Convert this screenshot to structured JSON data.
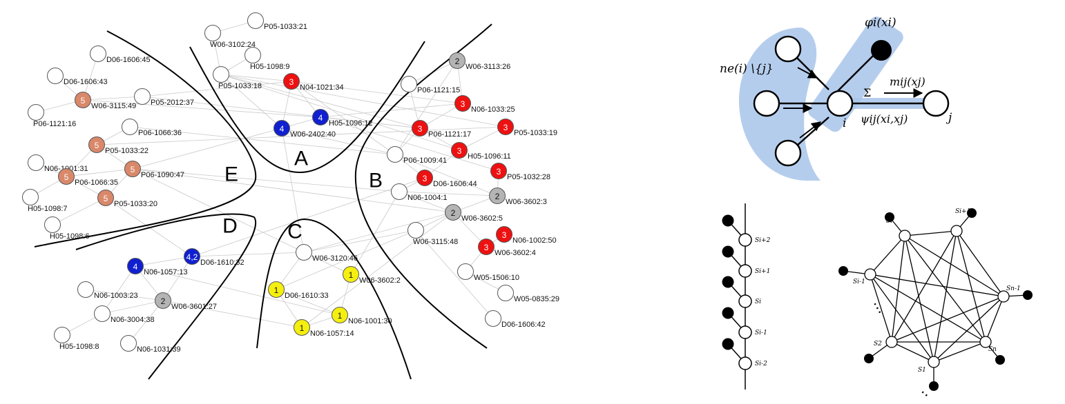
{
  "graph": {
    "regions": [
      "A",
      "B",
      "C",
      "D",
      "E"
    ],
    "colors": {
      "white": "#ffffff",
      "red": "#ee1111",
      "blue": "#1020d0",
      "gray": "#b4b4b4",
      "salmon": "#d9886a",
      "yellow": "#f5ef10"
    },
    "nodes": [
      {
        "id": "P05-1033:21",
        "color": "white",
        "num": ""
      },
      {
        "id": "W06-3102:24",
        "color": "white",
        "num": ""
      },
      {
        "id": "H05-1098:9",
        "color": "white",
        "num": ""
      },
      {
        "id": "P05-1033:18",
        "color": "white",
        "num": ""
      },
      {
        "id": "N04-1021:34",
        "color": "red",
        "num": "3"
      },
      {
        "id": "H05-1096:12",
        "color": "blue",
        "num": "4"
      },
      {
        "id": "W06-2402:40",
        "color": "blue",
        "num": "4"
      },
      {
        "id": "W06-3113:26",
        "color": "gray",
        "num": "2"
      },
      {
        "id": "P06-1121:15",
        "color": "white",
        "num": ""
      },
      {
        "id": "N06-1033:25",
        "color": "red",
        "num": "3"
      },
      {
        "id": "P06-1121:17",
        "color": "red",
        "num": "3"
      },
      {
        "id": "P05-1033:19",
        "color": "red",
        "num": "3"
      },
      {
        "id": "H05-1096:11",
        "color": "red",
        "num": "3"
      },
      {
        "id": "P06-1009:41",
        "color": "white",
        "num": ""
      },
      {
        "id": "P05-1032:28",
        "color": "red",
        "num": "3"
      },
      {
        "id": "D06-1606:44",
        "color": "red",
        "num": "3"
      },
      {
        "id": "N06-1004:1",
        "color": "white",
        "num": ""
      },
      {
        "id": "W06-3602:3",
        "color": "gray",
        "num": "2"
      },
      {
        "id": "W06-3602:5",
        "color": "gray",
        "num": "2"
      },
      {
        "id": "W06-3115:48",
        "color": "white",
        "num": ""
      },
      {
        "id": "N06-1002:50",
        "color": "red",
        "num": "3"
      },
      {
        "id": "W06-3602:4",
        "color": "red",
        "num": "3"
      },
      {
        "id": "W05-1506:10",
        "color": "white",
        "num": ""
      },
      {
        "id": "W05-0835:29",
        "color": "white",
        "num": ""
      },
      {
        "id": "D06-1606:42",
        "color": "white",
        "num": ""
      },
      {
        "id": "W06-3120:46",
        "color": "white",
        "num": ""
      },
      {
        "id": "W06-3602:2",
        "color": "yellow",
        "num": "1"
      },
      {
        "id": "D06-1610:33",
        "color": "yellow",
        "num": "1"
      },
      {
        "id": "N06-1001:30",
        "color": "yellow",
        "num": "1"
      },
      {
        "id": "N06-1057:14",
        "color": "yellow",
        "num": "1"
      },
      {
        "id": "D06-1610:32",
        "color": "blue",
        "num": "4,2"
      },
      {
        "id": "N06-1057:13",
        "color": "blue",
        "num": "4"
      },
      {
        "id": "N06-1003:23",
        "color": "white",
        "num": ""
      },
      {
        "id": "W06-3601:27",
        "color": "gray",
        "num": "2"
      },
      {
        "id": "N06-3004:38",
        "color": "white",
        "num": ""
      },
      {
        "id": "H05-1098:8",
        "color": "white",
        "num": ""
      },
      {
        "id": "N06-1031:39",
        "color": "white",
        "num": ""
      },
      {
        "id": "D06-1606:45",
        "color": "white",
        "num": ""
      },
      {
        "id": "D06-1606:43",
        "color": "white",
        "num": ""
      },
      {
        "id": "W06-3115:49",
        "color": "salmon",
        "num": "5"
      },
      {
        "id": "P05-2012:37",
        "color": "white",
        "num": ""
      },
      {
        "id": "P06-1121:16",
        "color": "white",
        "num": ""
      },
      {
        "id": "P06-1066:36",
        "color": "white",
        "num": ""
      },
      {
        "id": "P05-1033:22",
        "color": "salmon",
        "num": "5"
      },
      {
        "id": "N06-1001:31",
        "color": "white",
        "num": ""
      },
      {
        "id": "P06-1090:47",
        "color": "salmon",
        "num": "5"
      },
      {
        "id": "P06-1066:35",
        "color": "salmon",
        "num": "5"
      },
      {
        "id": "H05-1098:7",
        "color": "white",
        "num": ""
      },
      {
        "id": "P05-1033:20",
        "color": "salmon",
        "num": "5"
      },
      {
        "id": "H05-1098:6",
        "color": "white",
        "num": ""
      }
    ]
  },
  "factor": {
    "phi_label": "φi(xi)",
    "ne_label": "ne(i) \\{j}",
    "sum_label": "Σ",
    "m_label": "mij(xj)",
    "psi_label": "ψij(xi,xj)",
    "i_label": "i",
    "j_label": "j",
    "colors": {
      "highlight": "#a8c4ea"
    }
  },
  "chain": {
    "labels": [
      "Si+2",
      "Si+1",
      "Si",
      "Si-1",
      "Si-2"
    ]
  },
  "ring": {
    "labels": [
      "Si",
      "Si+1",
      "Si-1",
      "Sn-1",
      "S2",
      "Sn",
      "S1"
    ],
    "ellipsis": "⋯"
  }
}
